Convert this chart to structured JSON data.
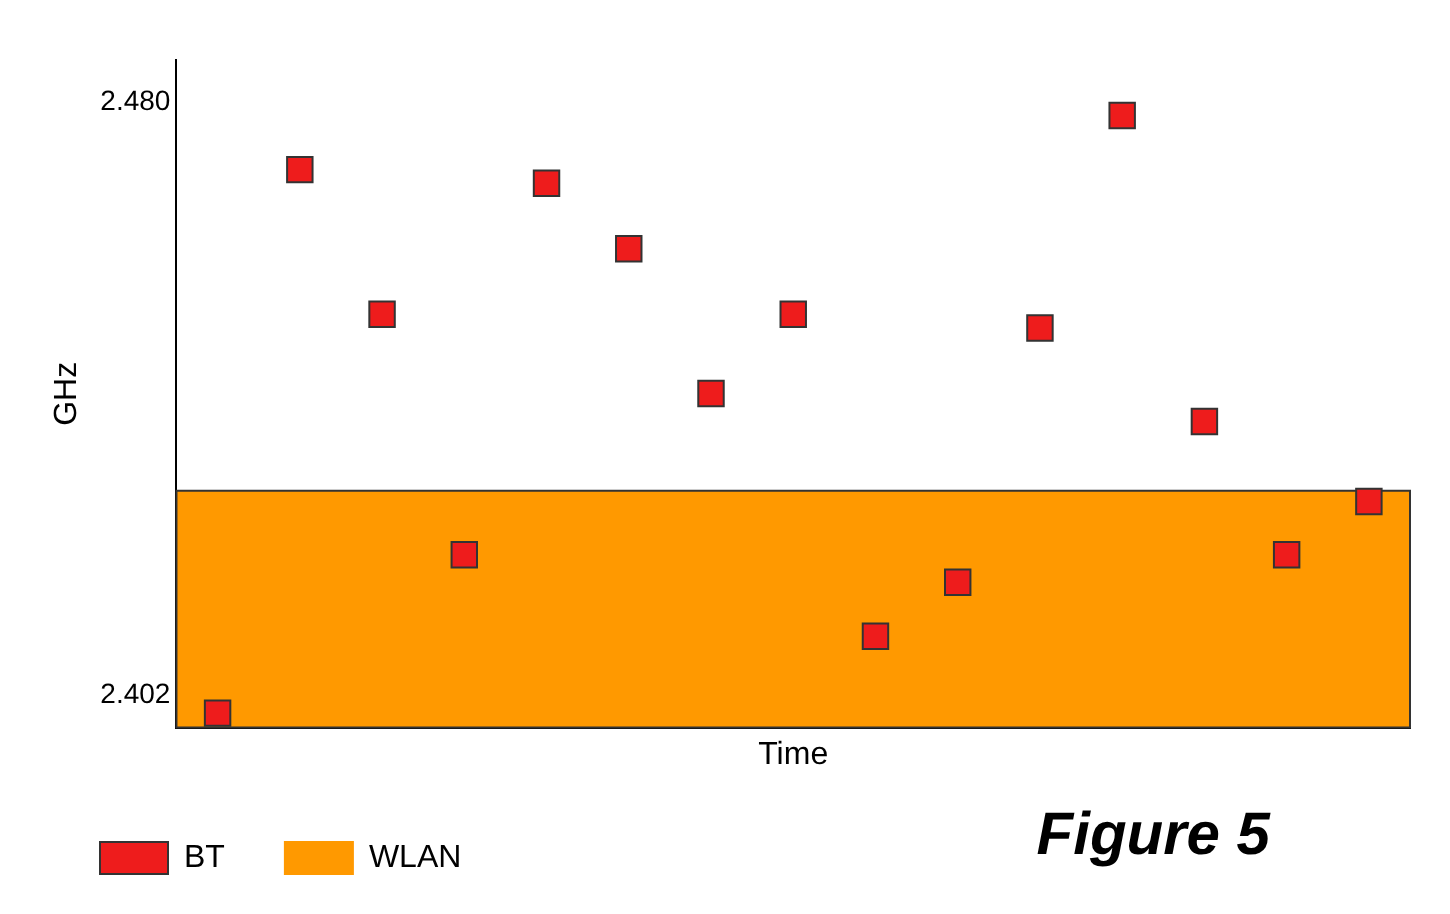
{
  "chart_data": {
    "type": "scatter",
    "xlabel": "Time",
    "ylabel": "GHz",
    "categories": [
      null,
      null,
      null,
      null,
      null,
      null,
      null,
      null,
      null,
      null,
      null,
      null,
      null,
      null,
      null
    ],
    "series": [
      {
        "name": "BT",
        "color": "#ee1c1c",
        "marker": "square",
        "values": [
          2.3997,
          2.4711,
          2.4521,
          2.4205,
          2.4693,
          2.4607,
          2.4417,
          2.4521,
          2.4098,
          2.4169,
          2.4503,
          2.4782,
          2.438,
          2.4205,
          2.4275
        ]
      }
    ],
    "bands": [
      {
        "axis": "y",
        "from": 2.3978,
        "to": 2.4289,
        "label": "WLAN",
        "color": "#ff9900"
      }
    ],
    "ylim": [
      2.3978,
      2.4855
    ],
    "yticks": [
      2.402,
      {
        "value": 2.48,
        "label": "2.480"
      }
    ],
    "tick_labels": "y",
    "grid": false,
    "legend": "bottom left",
    "annotations": [
      "Figure 5"
    ]
  }
}
